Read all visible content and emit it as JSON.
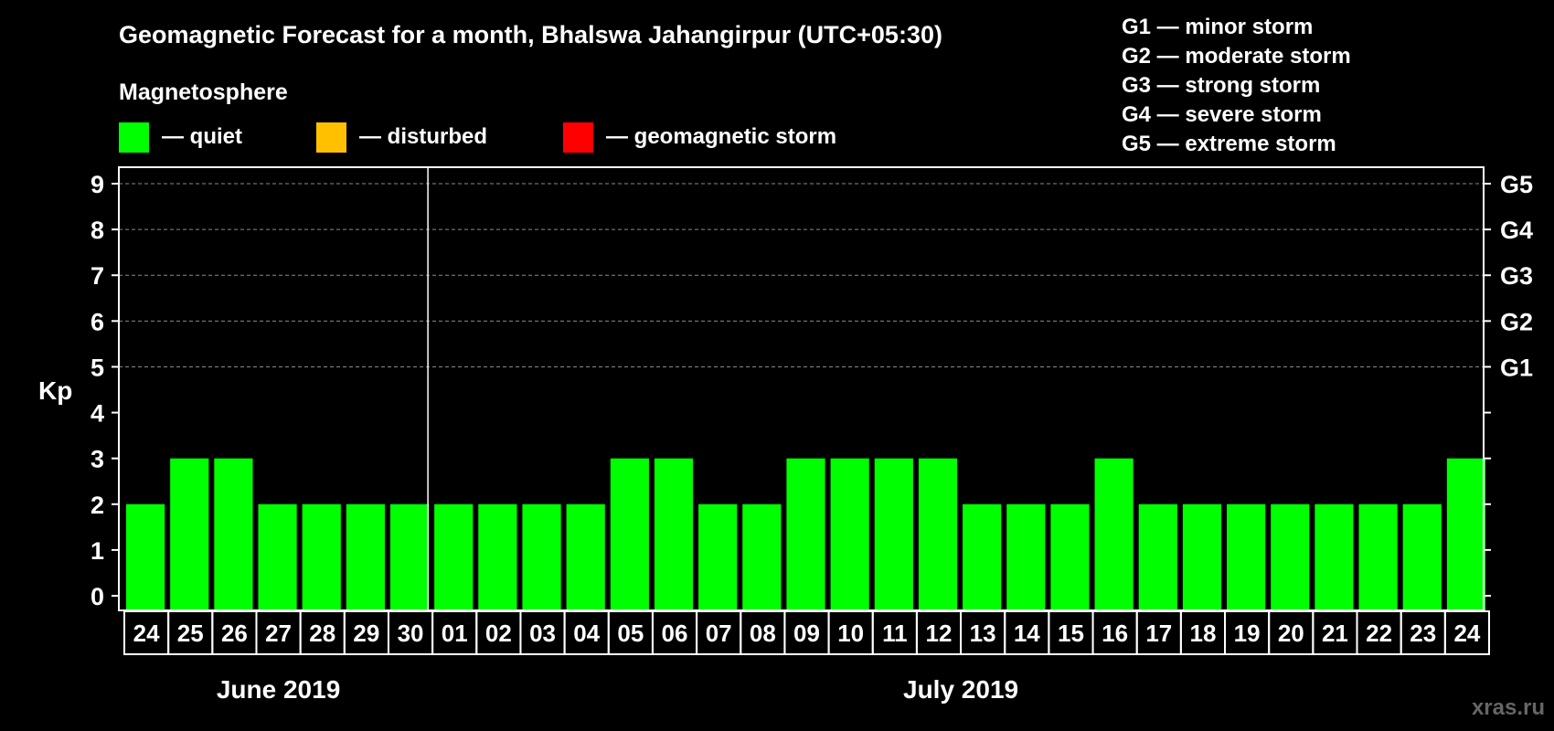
{
  "chart_data": {
    "type": "bar",
    "title": "Geomagnetic Forecast for a month, Bhalswa Jahangirpur (UTC+05:30)",
    "ylabel": "Kp",
    "ylim": [
      0,
      9
    ],
    "y_ticks": [
      0,
      1,
      2,
      3,
      4,
      5,
      6,
      7,
      8,
      9
    ],
    "storm_levels": [
      {
        "kp": 5,
        "label": "G1"
      },
      {
        "kp": 6,
        "label": "G2"
      },
      {
        "kp": 7,
        "label": "G3"
      },
      {
        "kp": 8,
        "label": "G4"
      },
      {
        "kp": 9,
        "label": "G5"
      }
    ],
    "categories": [
      "24",
      "25",
      "26",
      "27",
      "28",
      "29",
      "30",
      "01",
      "02",
      "03",
      "04",
      "05",
      "06",
      "07",
      "08",
      "09",
      "10",
      "11",
      "12",
      "13",
      "14",
      "15",
      "16",
      "17",
      "18",
      "19",
      "20",
      "21",
      "22",
      "23",
      "24"
    ],
    "values": [
      2,
      3,
      3,
      2,
      2,
      2,
      2,
      2,
      2,
      2,
      2,
      3,
      3,
      2,
      2,
      3,
      3,
      3,
      3,
      2,
      2,
      2,
      3,
      2,
      2,
      2,
      2,
      2,
      2,
      2,
      3
    ],
    "months": [
      {
        "label": "June 2019",
        "start": 0,
        "end": 6
      },
      {
        "label": "July 2019",
        "start": 7,
        "end": 30
      }
    ],
    "grid": true,
    "colors": {
      "quiet": "#00ff00",
      "disturbed": "#ffc000",
      "storm": "#ff0000",
      "background": "#000000",
      "foreground": "#ffffff"
    }
  },
  "legend": {
    "heading": "Magnetosphere",
    "items": [
      {
        "label": "— quiet",
        "color": "#00ff00"
      },
      {
        "label": "— disturbed",
        "color": "#ffc000"
      },
      {
        "label": "— geomagnetic storm",
        "color": "#ff0000"
      }
    ]
  },
  "storm_legend": [
    "G1 — minor storm",
    "G2 — moderate storm",
    "G3 — strong storm",
    "G4 — severe storm",
    "G5 — extreme storm"
  ],
  "watermark": "xras.ru"
}
